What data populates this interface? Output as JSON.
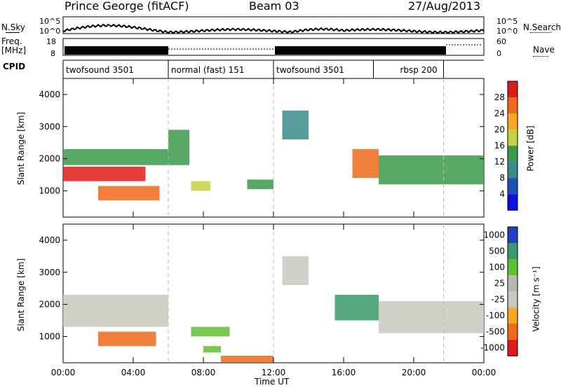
{
  "header": {
    "station": "Prince George (fitACF)",
    "beam": "Beam 03",
    "date": "27/Aug/2013"
  },
  "top_panels": {
    "nsky_label": "N.Sky",
    "nsky_ticks": [
      "10^5",
      "10^0"
    ],
    "nsearch_label": "N.Search",
    "nsearch_ticks": [
      "10^5",
      "10^0"
    ],
    "freq_label": "Freq.",
    "freq_unit": "[MHz]",
    "freq_ticks": [
      "18",
      "8"
    ],
    "nave_label": "Nave",
    "nave_ticks": [
      "60",
      "0"
    ],
    "cpid_label": "CPID",
    "cpid_segments": [
      {
        "label": "twofsound 3501",
        "start": 0,
        "end": 6
      },
      {
        "label": "normal (fast) 151",
        "start": 6,
        "end": 12
      },
      {
        "label": "twofsound 3501",
        "start": 12,
        "end": 17.7
      },
      {
        "label": "rbsp 200",
        "start": 17.7,
        "end": 21.7
      }
    ]
  },
  "chart_data": [
    {
      "type": "heatmap",
      "panel": "power",
      "ylabel": "Slant Range [km]",
      "yticks": [
        "4000",
        "3000",
        "2000",
        "1000"
      ],
      "ylim": [
        180,
        4500
      ],
      "xlim": [
        0,
        24
      ],
      "colorbar_label": "Power [dB]",
      "colorbar_ticks": [
        "28",
        "24",
        "20",
        "16",
        "12",
        "8",
        "4"
      ],
      "colorbar_colors": [
        "#e01a1a",
        "#f06a1a",
        "#f5a623",
        "#c8d040",
        "#3a9a4a",
        "#3a8a8a",
        "#2050c0",
        "#1010e0"
      ],
      "regions": [
        {
          "t0": 0,
          "t1": 4.7,
          "r0": 1300,
          "r1": 1750,
          "value": 28
        },
        {
          "t0": 0,
          "t1": 6,
          "r0": 1800,
          "r1": 2300,
          "value": 12
        },
        {
          "t0": 2,
          "t1": 5.5,
          "r0": 700,
          "r1": 1150,
          "value": 26
        },
        {
          "t0": 6,
          "t1": 7.2,
          "r0": 1800,
          "r1": 2900,
          "value": 12
        },
        {
          "t0": 7.3,
          "t1": 8.4,
          "r0": 1000,
          "r1": 1300,
          "value": 16
        },
        {
          "t0": 10.5,
          "t1": 12,
          "r0": 1050,
          "r1": 1350,
          "value": 12
        },
        {
          "t0": 12.5,
          "t1": 14,
          "r0": 2600,
          "r1": 3500,
          "value": 8
        },
        {
          "t0": 16.5,
          "t1": 18,
          "r0": 1400,
          "r1": 2300,
          "value": 24
        },
        {
          "t0": 18,
          "t1": 24,
          "r0": 1200,
          "r1": 2100,
          "value": 12
        }
      ]
    },
    {
      "type": "heatmap",
      "panel": "velocity",
      "xlabel": "Time UT",
      "ylabel": "Slant Range [km]",
      "yticks": [
        "4000",
        "3000",
        "2000",
        "1000"
      ],
      "ylim": [
        180,
        4500
      ],
      "xlim": [
        0,
        24
      ],
      "xticks": [
        "00:00",
        "04:00",
        "08:00",
        "12:00",
        "16:00",
        "20:00",
        "00:00"
      ],
      "colorbar_label": "Velocity [m s⁻¹]",
      "colorbar_ticks": [
        "1000",
        "500",
        "100",
        "25",
        "-25",
        "-100",
        "-500",
        "-1000"
      ],
      "colorbar_colors": [
        "#2040c0",
        "#3a9a6a",
        "#60c030",
        "#b8b8b0",
        "#c8c8c0",
        "#f5a623",
        "#f06a1a",
        "#e01a1a"
      ],
      "regions": [
        {
          "t0": 0,
          "t1": 6,
          "r0": 1300,
          "r1": 2300,
          "value": 0
        },
        {
          "t0": 2,
          "t1": 5.3,
          "r0": 700,
          "r1": 1150,
          "value": -300
        },
        {
          "t0": 7.3,
          "t1": 9.5,
          "r0": 1000,
          "r1": 1300,
          "value": 150
        },
        {
          "t0": 8,
          "t1": 9,
          "r0": 500,
          "r1": 700,
          "value": 120
        },
        {
          "t0": 12.5,
          "t1": 14,
          "r0": 2600,
          "r1": 3500,
          "value": 0
        },
        {
          "t0": 15.5,
          "t1": 18,
          "r0": 1500,
          "r1": 2300,
          "value": 700
        },
        {
          "t0": 18,
          "t1": 24,
          "r0": 1100,
          "r1": 2100,
          "value": 0
        },
        {
          "t0": 9,
          "t1": 12,
          "r0": 200,
          "r1": 400,
          "value": -200
        }
      ]
    }
  ]
}
